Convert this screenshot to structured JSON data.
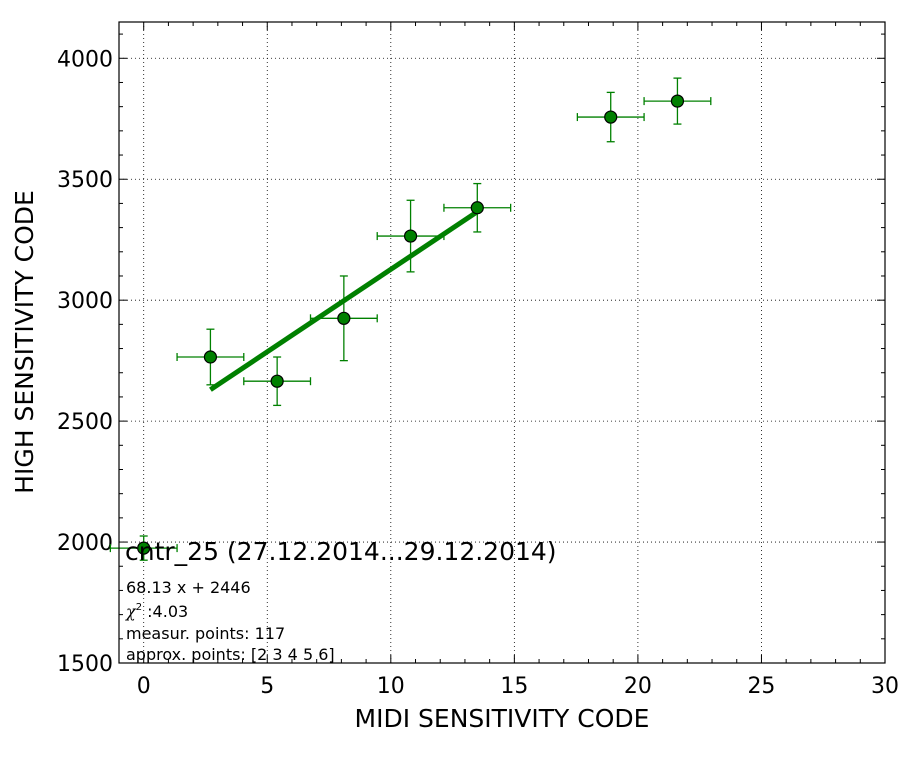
{
  "chart_data": {
    "type": "scatter",
    "title": "cntr_25 (27.12.2014...29.12.2014)",
    "xlabel": "MIDI SENSITIVITY CODE",
    "ylabel": "HIGH SENSITIVITY CODE",
    "xlim": [
      -1,
      30
    ],
    "ylim": [
      1500,
      4150
    ],
    "xticks": [
      0,
      5,
      10,
      15,
      20,
      25,
      30
    ],
    "yticks": [
      1500,
      2000,
      2500,
      3000,
      3500,
      4000
    ],
    "xtick_labels": [
      "0",
      "5",
      "10",
      "15",
      "20",
      "25",
      "30"
    ],
    "ytick_labels": [
      "1500",
      "2000",
      "2500",
      "3000",
      "3500",
      "4000"
    ],
    "grid": true,
    "series": [
      {
        "kind": "errorbar",
        "color": "#008000",
        "points": [
          {
            "x": 0.0,
            "y": 1975,
            "xerr": 1.35,
            "yerr": 50
          },
          {
            "x": 2.7,
            "y": 2765,
            "xerr": 1.35,
            "yerr": 115
          },
          {
            "x": 5.4,
            "y": 2665,
            "xerr": 1.35,
            "yerr": 100
          },
          {
            "x": 8.1,
            "y": 2925,
            "xerr": 1.35,
            "yerr": 175
          },
          {
            "x": 10.8,
            "y": 3265,
            "xerr": 1.35,
            "yerr": 148
          },
          {
            "x": 13.5,
            "y": 3382,
            "xerr": 1.35,
            "yerr": 100
          },
          {
            "x": 18.9,
            "y": 3757,
            "xerr": 1.35,
            "yerr": 102
          },
          {
            "x": 21.6,
            "y": 3823,
            "xerr": 1.35,
            "yerr": 95
          }
        ]
      },
      {
        "kind": "fit-line",
        "color": "#008000",
        "slope": 68.13,
        "intercept": 2446,
        "x_range": [
          2.7,
          13.5
        ]
      }
    ],
    "annotations": {
      "fit": "68.13 x + 2446",
      "chi2_symbol": "χ",
      "chi2_exp": "2",
      "chi2_value": " :4.03",
      "measur_points": "measur. points: 117",
      "approx_points": "approx. points: [2 3 4 5 6]"
    }
  }
}
